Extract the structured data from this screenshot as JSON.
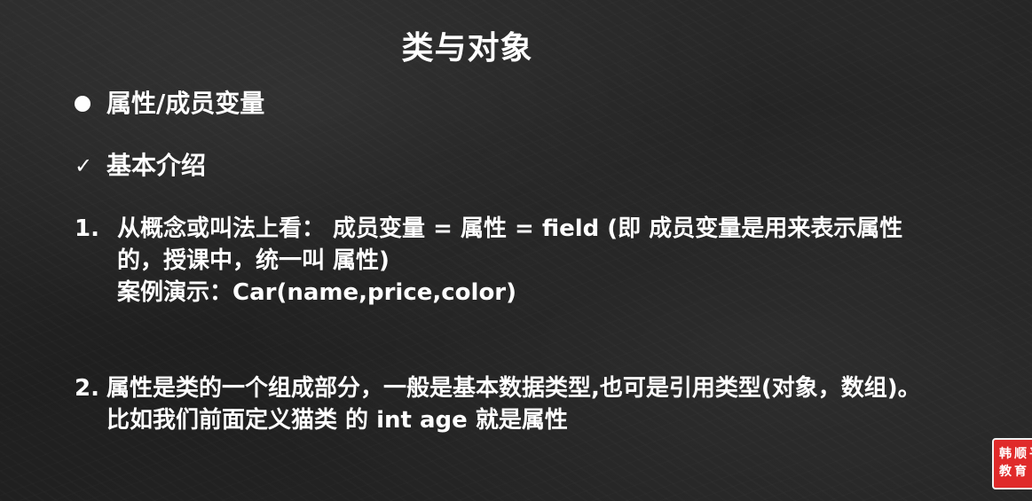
{
  "slide": {
    "title": "类与对象",
    "bullet": "属性/成员变量",
    "check_label": "基本介绍",
    "check_symbol": "✓",
    "item1": {
      "num": "1.",
      "line1": "从概念或叫法上看： 成员变量 = 属性 = field  (即 成员变量是用来表示属性",
      "line2": "的，授课中，统一叫 属性)",
      "line3": "案例演示：Car(name,price,color)"
    },
    "item2": {
      "num": "2.",
      "line1": "属性是类的一个组成部分，一般是基本数据类型,也可是引用类型(对象，数组)。",
      "line2": "比如我们前面定义猫类 的 int age 就是属性"
    },
    "logo": {
      "line1": "韩顺平",
      "line2": "教育"
    }
  },
  "colors": {
    "background": "#1e1e1e",
    "text": "#ffffff",
    "logo_red": "#e02a2a"
  }
}
